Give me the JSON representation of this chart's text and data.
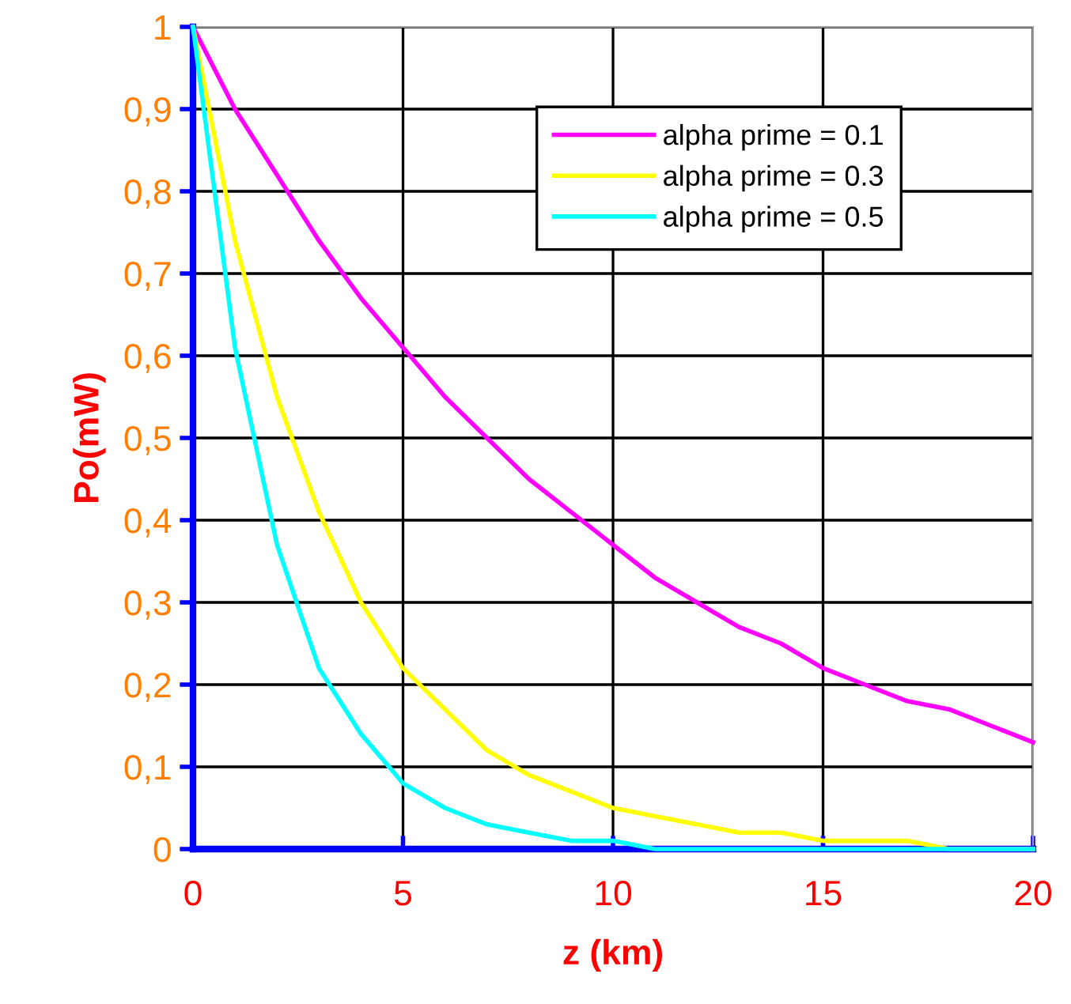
{
  "chart_data": {
    "type": "line",
    "xlabel": "z (km)",
    "ylabel": "Po(mW)",
    "x": [
      0,
      1,
      2,
      3,
      4,
      5,
      6,
      7,
      8,
      9,
      10,
      11,
      12,
      13,
      14,
      15,
      16,
      17,
      18,
      19,
      20
    ],
    "series": [
      {
        "name": "alpha prime = 0.1",
        "color": "#ff00ff",
        "values": [
          1,
          0.9,
          0.82,
          0.74,
          0.67,
          0.61,
          0.55,
          0.5,
          0.45,
          0.41,
          0.37,
          0.33,
          0.3,
          0.27,
          0.25,
          0.22,
          0.2,
          0.18,
          0.17,
          0.15,
          0.13
        ]
      },
      {
        "name": "alpha prime = 0.3",
        "color": "#ffff00",
        "values": [
          1,
          0.74,
          0.55,
          0.41,
          0.3,
          0.22,
          0.17,
          0.12,
          0.09,
          0.07,
          0.05,
          0.04,
          0.03,
          0.02,
          0.02,
          0.01,
          0.01,
          0.01,
          0.0,
          0.0,
          0.0
        ]
      },
      {
        "name": "alpha prime = 0.5",
        "color": "#00ffff",
        "values": [
          1,
          0.61,
          0.37,
          0.22,
          0.14,
          0.08,
          0.05,
          0.03,
          0.02,
          0.01,
          0.01,
          0.0,
          0.0,
          0.0,
          0.0,
          0.0,
          0.0,
          0.0,
          0.0,
          0.0,
          0.0
        ]
      }
    ],
    "xlim": [
      0,
      20
    ],
    "xticks": [
      0,
      5,
      10,
      15,
      20
    ],
    "ylim": [
      0,
      1
    ],
    "yticks": [
      0,
      {
        "value": 0.1,
        "label": "0,1"
      },
      {
        "value": 0.2,
        "label": "0,2"
      },
      {
        "value": 0.3,
        "label": "0,3"
      },
      {
        "value": 0.4,
        "label": "0,4"
      },
      {
        "value": 0.5,
        "label": "0,5"
      },
      {
        "value": 0.6,
        "label": "0,6"
      },
      {
        "value": 0.7,
        "label": "0,7"
      },
      {
        "value": 0.8,
        "label": "0,8"
      },
      {
        "value": 0.9,
        "label": "0,9"
      },
      1
    ],
    "grid": true,
    "legend": "top right",
    "marker": "none",
    "line_style": "solid"
  }
}
